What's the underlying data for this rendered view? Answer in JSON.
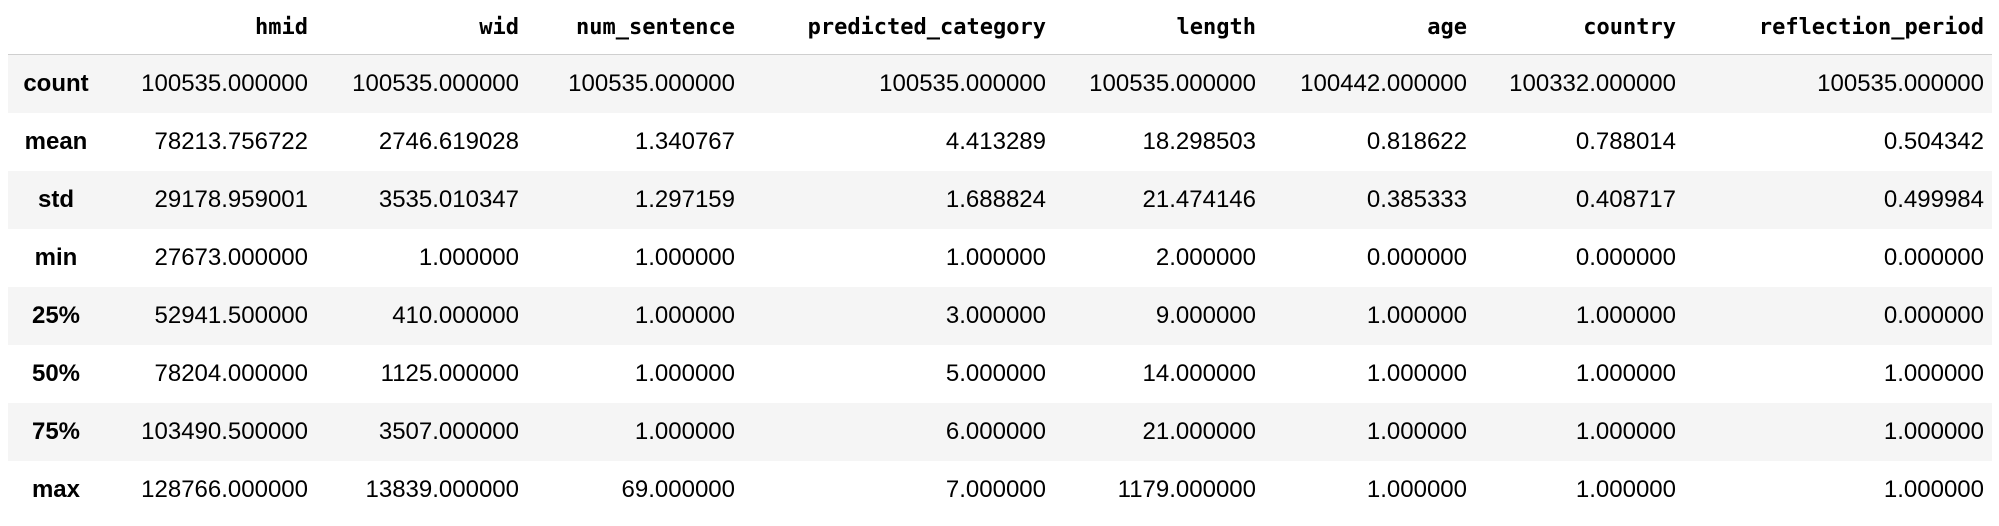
{
  "table": {
    "columns": [
      "",
      "hmid",
      "wid",
      "num_sentence",
      "predicted_category",
      "length",
      "age",
      "country",
      "reflection_period"
    ],
    "rows": [
      {
        "label": "count",
        "values": [
          "100535.000000",
          "100535.000000",
          "100535.000000",
          "100535.000000",
          "100535.000000",
          "100442.000000",
          "100332.000000",
          "100535.000000"
        ]
      },
      {
        "label": "mean",
        "values": [
          "78213.756722",
          "2746.619028",
          "1.340767",
          "4.413289",
          "18.298503",
          "0.818622",
          "0.788014",
          "0.504342"
        ]
      },
      {
        "label": "std",
        "values": [
          "29178.959001",
          "3535.010347",
          "1.297159",
          "1.688824",
          "21.474146",
          "0.385333",
          "0.408717",
          "0.499984"
        ]
      },
      {
        "label": "min",
        "values": [
          "27673.000000",
          "1.000000",
          "1.000000",
          "1.000000",
          "2.000000",
          "0.000000",
          "0.000000",
          "0.000000"
        ]
      },
      {
        "label": "25%",
        "values": [
          "52941.500000",
          "410.000000",
          "1.000000",
          "3.000000",
          "9.000000",
          "1.000000",
          "1.000000",
          "0.000000"
        ]
      },
      {
        "label": "50%",
        "values": [
          "78204.000000",
          "1125.000000",
          "1.000000",
          "5.000000",
          "14.000000",
          "1.000000",
          "1.000000",
          "1.000000"
        ]
      },
      {
        "label": "75%",
        "values": [
          "103490.500000",
          "3507.000000",
          "1.000000",
          "6.000000",
          "21.000000",
          "1.000000",
          "1.000000",
          "1.000000"
        ]
      },
      {
        "label": "max",
        "values": [
          "128766.000000",
          "13839.000000",
          "69.000000",
          "7.000000",
          "1179.000000",
          "1.000000",
          "1.000000",
          "1.000000"
        ]
      }
    ]
  },
  "colors": {
    "stripe": "#f5f5f5",
    "background": "#ffffff",
    "header_rule": "#cfcfcf",
    "text": "#000000"
  }
}
